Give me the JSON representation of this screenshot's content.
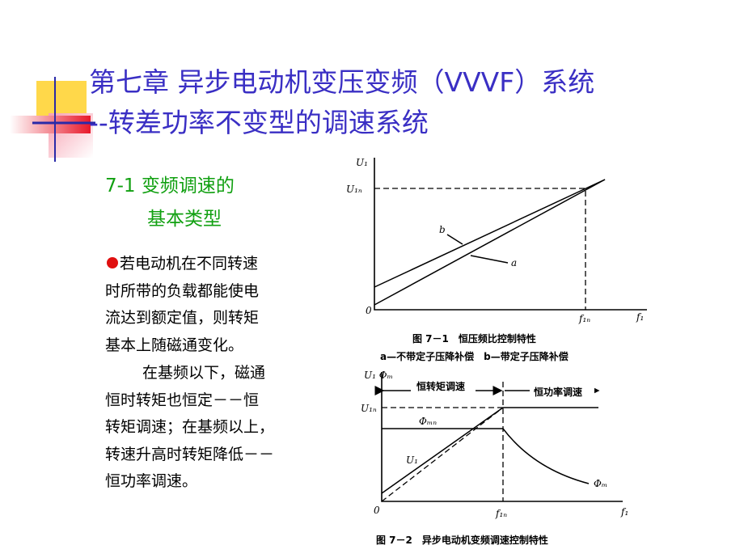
{
  "header": {
    "title": [
      "第七章 异步电动机变压变频（VVVF）系统",
      "--转差功率不变型的调速系统"
    ]
  },
  "section": [
    "7-1 变频调速的",
    "基本类型"
  ],
  "body": [
    "若电动机在不同转速",
    "时所带的负载都能使电",
    "流达到额定值，则转矩",
    "基本上随磁通变化。",
    "在基频以下，磁通",
    "恒时转矩也恒定－－恒",
    "转矩调速；在基频以上，",
    "转速升高时转矩降低－－",
    "恒功率调速。"
  ],
  "figure1": {
    "y_label": "U₁",
    "y_mark": "U₁ₙ",
    "curve_b": "b",
    "curve_a": "a",
    "origin": "0",
    "x_mark": "f₁ₙ",
    "x_label": "f₁",
    "caption": "图 7－1　恒压频比控制特性",
    "note": "a—不带定子压降补偿　b—带定子压降补偿"
  },
  "figure2": {
    "y_label": "U₁ Φₘ",
    "y_mark": "U₁ₙ",
    "region1": "恒转矩调速",
    "region2": "恒功率调速",
    "flux_rated": "Φₘₙ",
    "voltage": "U₁",
    "flux": "Φₘ",
    "origin": "0",
    "x_mark": "f₁ₙ",
    "x_label": "f₁",
    "caption": "图 7－2　异步电动机变频调速控制特性"
  }
}
